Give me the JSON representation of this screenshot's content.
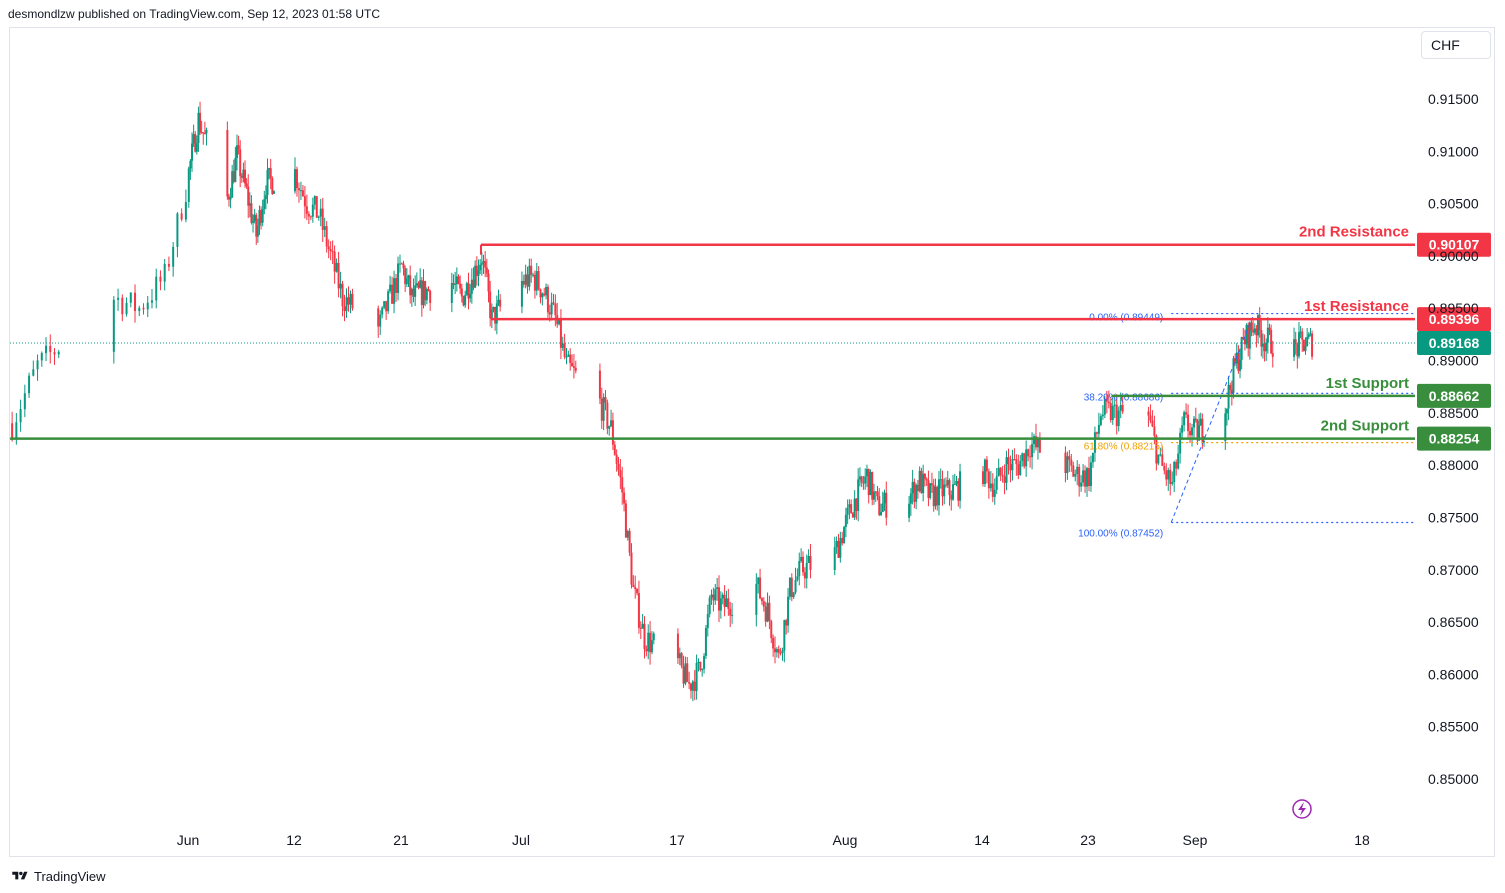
{
  "header": {
    "published_text": "desmondlzw published on TradingView.com, Sep 12, 2023 01:58 UTC"
  },
  "toolbar": {
    "currency_label": "CHF"
  },
  "footer": {
    "brand_label": "TradingView"
  },
  "colors": {
    "up": "#089981",
    "down": "#f23645",
    "resistance": "#f23645",
    "support": "#388e3c",
    "fib": "#2962ff",
    "fib_mid": "#f0a000",
    "grid_text": "#131722",
    "current": "#089981"
  },
  "icons": {
    "lightning": "lightning-icon",
    "logo": "tradingview-logo-icon"
  },
  "chart_data": {
    "type": "candlestick",
    "symbol_currency": "CHF",
    "ylim": [
      0.8455,
      0.9195
    ],
    "y_ticks": [
      "0.91500",
      "0.91000",
      "0.90500",
      "0.90000",
      "0.89500",
      "0.89000",
      "0.88500",
      "0.88000",
      "0.87500",
      "0.87000",
      "0.86500",
      "0.86000",
      "0.85500",
      "0.85000"
    ],
    "y_tick_values": [
      0.915,
      0.91,
      0.905,
      0.9,
      0.895,
      0.89,
      0.885,
      0.88,
      0.875,
      0.87,
      0.865,
      0.86,
      0.855,
      0.85
    ],
    "x_ticks": [
      "Jun",
      "12",
      "21",
      "Jul",
      "17",
      "Aug",
      "14",
      "23",
      "Sep",
      "18"
    ],
    "x_tick_dates": [
      "2023-06-01",
      "2023-06-12",
      "2023-06-21",
      "2023-07-03",
      "2023-07-17",
      "2023-08-01",
      "2023-08-14",
      "2023-08-23",
      "2023-09-01",
      "2023-09-18"
    ],
    "price_path": [
      [
        "2023-05-25",
        0.884
      ],
      [
        "2023-05-26",
        0.8895
      ],
      [
        "2023-05-29",
        0.896
      ],
      [
        "2023-05-30",
        0.895
      ],
      [
        "2023-05-31",
        0.898
      ],
      [
        "2023-06-01",
        0.908
      ],
      [
        "2023-06-02",
        0.913
      ],
      [
        "2023-06-05",
        0.9055
      ],
      [
        "2023-06-06",
        0.9095
      ],
      [
        "2023-06-07",
        0.906
      ],
      [
        "2023-06-08",
        0.902
      ],
      [
        "2023-06-09",
        0.907
      ],
      [
        "2023-06-12",
        0.908
      ],
      [
        "2023-06-13",
        0.905
      ],
      [
        "2023-06-14",
        0.904
      ],
      [
        "2023-06-15",
        0.9
      ],
      [
        "2023-06-16",
        0.896
      ],
      [
        "2023-06-19",
        0.893
      ],
      [
        "2023-06-20",
        0.896
      ],
      [
        "2023-06-21",
        0.899
      ],
      [
        "2023-06-22",
        0.896
      ],
      [
        "2023-06-23",
        0.8965
      ],
      [
        "2023-06-26",
        0.8975
      ],
      [
        "2023-06-27",
        0.896
      ],
      [
        "2023-06-28",
        0.898
      ],
      [
        "2023-06-29",
        0.9
      ],
      [
        "2023-06-30",
        0.894
      ],
      [
        "2023-07-03",
        0.8975
      ],
      [
        "2023-07-04",
        0.898
      ],
      [
        "2023-07-05",
        0.8965
      ],
      [
        "2023-07-06",
        0.894
      ],
      [
        "2023-07-07",
        0.8895
      ],
      [
        "2023-07-10",
        0.886
      ],
      [
        "2023-07-11",
        0.8835
      ],
      [
        "2023-07-12",
        0.8775
      ],
      [
        "2023-07-13",
        0.868
      ],
      [
        "2023-07-14",
        0.8635
      ],
      [
        "2023-07-17",
        0.861
      ],
      [
        "2023-07-18",
        0.859
      ],
      [
        "2023-07-19",
        0.8605
      ],
      [
        "2023-07-20",
        0.8675
      ],
      [
        "2023-07-21",
        0.8665
      ],
      [
        "2023-07-24",
        0.8685
      ],
      [
        "2023-07-25",
        0.866
      ],
      [
        "2023-07-26",
        0.8615
      ],
      [
        "2023-07-27",
        0.868
      ],
      [
        "2023-07-28",
        0.87
      ],
      [
        "2023-07-31",
        0.8715
      ],
      [
        "2023-08-01",
        0.8745
      ],
      [
        "2023-08-02",
        0.877
      ],
      [
        "2023-08-03",
        0.879
      ],
      [
        "2023-08-04",
        0.876
      ],
      [
        "2023-08-07",
        0.877
      ],
      [
        "2023-08-08",
        0.8785
      ],
      [
        "2023-08-09",
        0.877
      ],
      [
        "2023-08-10",
        0.8775
      ],
      [
        "2023-08-11",
        0.8775
      ],
      [
        "2023-08-14",
        0.8795
      ],
      [
        "2023-08-15",
        0.878
      ],
      [
        "2023-08-16",
        0.88
      ],
      [
        "2023-08-17",
        0.88
      ],
      [
        "2023-08-18",
        0.882
      ],
      [
        "2023-08-21",
        0.88
      ],
      [
        "2023-08-22",
        0.879
      ],
      [
        "2023-08-23",
        0.879
      ],
      [
        "2023-08-24",
        0.885
      ],
      [
        "2023-08-25",
        0.885
      ],
      [
        "2023-08-28",
        0.8845
      ],
      [
        "2023-08-29",
        0.88
      ],
      [
        "2023-08-30",
        0.878
      ],
      [
        "2023-08-31",
        0.884
      ],
      [
        "2023-09-01",
        0.883
      ],
      [
        "2023-09-04",
        0.8855
      ],
      [
        "2023-09-05",
        0.8895
      ],
      [
        "2023-09-06",
        0.892
      ],
      [
        "2023-09-07",
        0.8935
      ],
      [
        "2023-09-08",
        0.892
      ],
      [
        "2023-09-11",
        0.891
      ],
      [
        "2023-09-12",
        0.8917
      ]
    ],
    "current_price": {
      "value": 0.89168,
      "label": "0.89168"
    },
    "levels": [
      {
        "name": "2nd Resistance",
        "value": 0.90107,
        "label": "0.90107",
        "kind": "resistance",
        "start_date": "2023-06-29"
      },
      {
        "name": "1st Resistance",
        "value": 0.89396,
        "label": "0.89396",
        "kind": "resistance",
        "start_date": "2023-06-30"
      },
      {
        "name": "1st Support",
        "value": 0.88662,
        "label": "0.88662",
        "kind": "support",
        "start_date": "2023-08-25"
      },
      {
        "name": "2nd Support",
        "value": 0.88254,
        "label": "0.88254",
        "kind": "support",
        "start_date": "2023-05-25"
      }
    ],
    "fibonacci": {
      "from_date": "2023-08-30",
      "to_date": "2023-09-07",
      "levels": [
        {
          "ratio_label": "0.00%",
          "value": 0.89449,
          "label": "0.00% (0.89449)"
        },
        {
          "ratio_label": "38.20%",
          "value": 0.88686,
          "label": "38.20% (0.88686)"
        },
        {
          "ratio_label": "61.80%",
          "value": 0.88215,
          "label": "61.80% (0.88215)"
        },
        {
          "ratio_label": "100.00%",
          "value": 0.87452,
          "label": "100.00% (0.87452)"
        }
      ]
    },
    "grid": false,
    "legend": "none"
  }
}
